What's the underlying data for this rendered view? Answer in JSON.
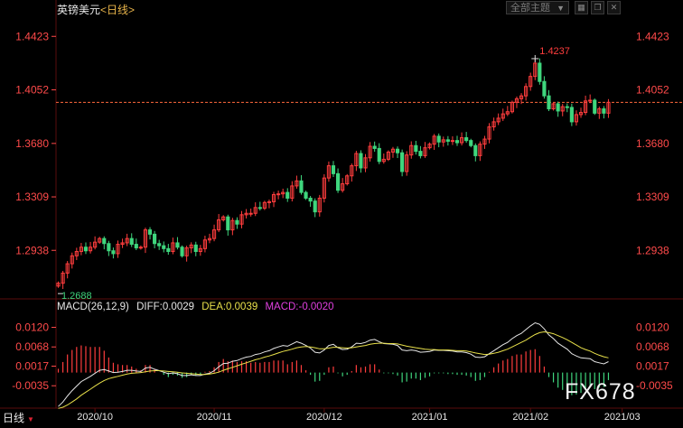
{
  "header": {
    "symbol": "英镑美元",
    "period": "<日线>",
    "theme_label": "全部主题",
    "icons": [
      "grid-icon",
      "restore-icon",
      "close-icon"
    ]
  },
  "macd_header": {
    "title": "MACD(26,12,9)",
    "diff": "DIFF:0.0029",
    "dea": "DEA:0.0039",
    "macd": "MACD:-0.0020"
  },
  "bottom_bar": {
    "period_button": "日线"
  },
  "watermark": "FX678",
  "colors": {
    "up": "#ff3d3d",
    "down": "#3fd67d",
    "price_axis": "#ff4a4a",
    "diff_line": "#e6e6e6",
    "dea_line": "#e8e04a",
    "macd_label": "#e040e0",
    "current_line": "#ff6a3d",
    "grid": "#5a0d0d"
  },
  "chart_data": [
    {
      "type": "candlestick",
      "title": "",
      "y_ticks": [
        "1.4423",
        "1.4052",
        "1.3680",
        "1.3309",
        "1.2938"
      ],
      "ylim": [
        1.262,
        1.455
      ],
      "x_ticks": [
        "2020/10",
        "2020/11",
        "2020/12",
        "2021/01",
        "2021/02",
        "2021/03"
      ],
      "annotations": [
        {
          "text": "1.4237",
          "value": 1.4237,
          "kind": "high"
        },
        {
          "text": "1.2688",
          "value": 1.2688,
          "kind": "low"
        }
      ],
      "current_price": 1.3965,
      "close": [
        1.271,
        1.278,
        1.2845,
        1.29,
        1.293,
        1.296,
        1.2935,
        1.296,
        1.2995,
        1.302,
        1.2985,
        1.2935,
        1.2915,
        1.298,
        1.299,
        1.302,
        1.298,
        1.2955,
        1.296,
        1.308,
        1.305,
        1.2985,
        1.297,
        1.295,
        1.293,
        1.299,
        1.296,
        1.29,
        1.2955,
        1.2975,
        1.293,
        1.295,
        1.301,
        1.302,
        1.308,
        1.315,
        1.317,
        1.308,
        1.3145,
        1.312,
        1.3185,
        1.3195,
        1.3195,
        1.3235,
        1.323,
        1.327,
        1.3275,
        1.3325,
        1.333,
        1.334,
        1.33,
        1.3385,
        1.342,
        1.334,
        1.33,
        1.328,
        1.3205,
        1.33,
        1.344,
        1.3525,
        1.347,
        1.3355,
        1.34,
        1.3455,
        1.3525,
        1.361,
        1.351,
        1.358,
        1.366,
        1.3645,
        1.3555,
        1.357,
        1.362,
        1.364,
        1.3615,
        1.3485,
        1.36,
        1.3665,
        1.3625,
        1.3595,
        1.365,
        1.3675,
        1.373,
        1.369,
        1.3705,
        1.3695,
        1.37,
        1.3685,
        1.372,
        1.37,
        1.3665,
        1.3595,
        1.3675,
        1.371,
        1.3795,
        1.383,
        1.3855,
        1.3885,
        1.39,
        1.3965,
        1.399,
        1.401,
        1.4075,
        1.4145,
        1.4237,
        1.411,
        1.401,
        1.392,
        1.3955,
        1.3905,
        1.3935,
        1.393,
        1.383,
        1.388,
        1.3895,
        1.3975,
        1.398,
        1.389,
        1.392,
        1.389,
        1.3965
      ],
      "open": [
        1.269,
        1.271,
        1.278,
        1.2845,
        1.29,
        1.293,
        1.296,
        1.2935,
        1.296,
        1.2995,
        1.302,
        1.2985,
        1.2935,
        1.2915,
        1.298,
        1.299,
        1.302,
        1.298,
        1.2955,
        1.296,
        1.308,
        1.305,
        1.2985,
        1.297,
        1.295,
        1.293,
        1.299,
        1.296,
        1.29,
        1.2955,
        1.2975,
        1.293,
        1.295,
        1.301,
        1.302,
        1.308,
        1.315,
        1.317,
        1.308,
        1.3145,
        1.312,
        1.3185,
        1.3195,
        1.3195,
        1.3235,
        1.323,
        1.327,
        1.3275,
        1.3325,
        1.333,
        1.334,
        1.33,
        1.3385,
        1.342,
        1.334,
        1.33,
        1.328,
        1.3205,
        1.33,
        1.344,
        1.3525,
        1.347,
        1.3355,
        1.34,
        1.3455,
        1.3525,
        1.361,
        1.351,
        1.358,
        1.366,
        1.3645,
        1.3555,
        1.357,
        1.362,
        1.364,
        1.3615,
        1.3485,
        1.36,
        1.3665,
        1.3625,
        1.3595,
        1.365,
        1.3675,
        1.373,
        1.369,
        1.3705,
        1.3695,
        1.37,
        1.3685,
        1.372,
        1.37,
        1.3665,
        1.3595,
        1.3675,
        1.371,
        1.3795,
        1.383,
        1.3855,
        1.3885,
        1.39,
        1.3965,
        1.399,
        1.401,
        1.4075,
        1.4145,
        1.4237,
        1.411,
        1.401,
        1.392,
        1.3955,
        1.3905,
        1.3935,
        1.393,
        1.383,
        1.388,
        1.3895,
        1.3975,
        1.398,
        1.389,
        1.392,
        1.389
      ],
      "date_tick_index": [
        8,
        34,
        58,
        81,
        103,
        123
      ]
    },
    {
      "type": "bar+line",
      "title": "MACD(26,12,9)",
      "y_ticks": [
        "0.0120",
        "0.0068",
        "0.0017",
        "-0.0035"
      ],
      "ylim": [
        -0.008,
        0.015
      ],
      "series": [
        {
          "name": "DIFF",
          "values": [
            -0.009,
            -0.0078,
            -0.0062,
            -0.0048,
            -0.0036,
            -0.0024,
            -0.0017,
            -0.001,
            -0.0002,
            0.0006,
            0.0008,
            0.0004,
            0.0,
            0.0001,
            0.0003,
            0.0006,
            0.0006,
            0.0004,
            0.0003,
            0.0012,
            0.0014,
            0.0009,
            0.0005,
            0.0001,
            -0.0003,
            -0.0001,
            -0.0003,
            -0.0008,
            -0.0008,
            -0.0006,
            -0.0008,
            -0.0008,
            -0.0004,
            -0.0002,
            0.0005,
            0.0015,
            0.0024,
            0.0025,
            0.003,
            0.0032,
            0.0037,
            0.0041,
            0.0043,
            0.0048,
            0.005,
            0.0055,
            0.0058,
            0.0064,
            0.0068,
            0.0072,
            0.007,
            0.0076,
            0.0082,
            0.0078,
            0.0072,
            0.0065,
            0.0054,
            0.0052,
            0.006,
            0.0072,
            0.0075,
            0.0066,
            0.0061,
            0.0062,
            0.0068,
            0.0078,
            0.0077,
            0.008,
            0.0086,
            0.0088,
            0.0082,
            0.0077,
            0.0076,
            0.0075,
            0.0072,
            0.006,
            0.0058,
            0.006,
            0.0058,
            0.0054,
            0.0055,
            0.0056,
            0.006,
            0.0059,
            0.0059,
            0.0058,
            0.0057,
            0.0055,
            0.0055,
            0.0053,
            0.0049,
            0.0041,
            0.004,
            0.0042,
            0.005,
            0.0058,
            0.0066,
            0.0074,
            0.008,
            0.009,
            0.0098,
            0.0104,
            0.0114,
            0.0124,
            0.0132,
            0.0128,
            0.0116,
            0.01,
            0.009,
            0.0078,
            0.007,
            0.0062,
            0.005,
            0.0044,
            0.0039,
            0.0038,
            0.0037,
            0.0029,
            0.0026,
            0.0023,
            0.0029
          ]
        },
        {
          "name": "DEA",
          "values": [
            -0.0095,
            -0.0092,
            -0.0086,
            -0.0078,
            -0.007,
            -0.006,
            -0.0052,
            -0.0044,
            -0.0036,
            -0.0028,
            -0.0021,
            -0.0016,
            -0.0013,
            -0.001,
            -0.0007,
            -0.0004,
            -0.0002,
            -0.0001,
            0.0,
            0.0002,
            0.0004,
            0.0005,
            0.0005,
            0.0004,
            0.0003,
            0.0002,
            0.0001,
            -0.0001,
            -0.0002,
            -0.0003,
            -0.0004,
            -0.0005,
            -0.0005,
            -0.0004,
            -0.0002,
            0.0001,
            0.0006,
            0.001,
            0.0014,
            0.0018,
            0.0022,
            0.0026,
            0.003,
            0.0034,
            0.0037,
            0.0041,
            0.0044,
            0.0048,
            0.0052,
            0.0056,
            0.0059,
            0.0062,
            0.0066,
            0.0068,
            0.0069,
            0.0068,
            0.0066,
            0.0063,
            0.0063,
            0.0065,
            0.0067,
            0.0067,
            0.0066,
            0.0065,
            0.0066,
            0.0068,
            0.007,
            0.0072,
            0.0075,
            0.0077,
            0.0078,
            0.0078,
            0.0077,
            0.0077,
            0.0076,
            0.0073,
            0.007,
            0.0068,
            0.0066,
            0.0064,
            0.0062,
            0.0061,
            0.0061,
            0.006,
            0.006,
            0.006,
            0.0059,
            0.0058,
            0.0058,
            0.0057,
            0.0055,
            0.0052,
            0.005,
            0.0048,
            0.0049,
            0.0051,
            0.0054,
            0.0058,
            0.0062,
            0.0068,
            0.0074,
            0.008,
            0.0086,
            0.0094,
            0.0101,
            0.0106,
            0.0108,
            0.0106,
            0.0103,
            0.0098,
            0.0093,
            0.0087,
            0.008,
            0.0073,
            0.0066,
            0.0061,
            0.0057,
            0.0051,
            0.0046,
            0.0042,
            0.0039
          ]
        }
      ]
    }
  ]
}
